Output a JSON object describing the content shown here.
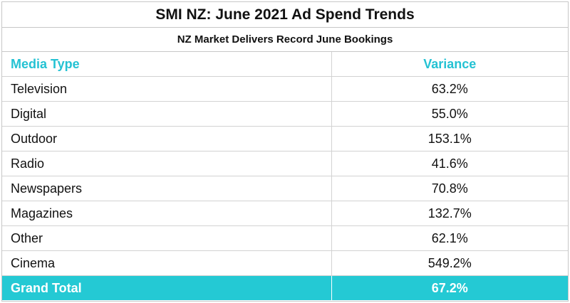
{
  "chart_data": {
    "type": "table",
    "title": "SMI NZ: June 2021 Ad Spend Trends",
    "subtitle": "NZ Market Delivers Record June Bookings",
    "columns": [
      "Media Type",
      "Variance"
    ],
    "rows": [
      {
        "media_type": "Television",
        "variance": "63.2%"
      },
      {
        "media_type": "Digital",
        "variance": "55.0%"
      },
      {
        "media_type": "Outdoor",
        "variance": "153.1%"
      },
      {
        "media_type": "Radio",
        "variance": "41.6%"
      },
      {
        "media_type": "Newspapers",
        "variance": "70.8%"
      },
      {
        "media_type": "Magazines",
        "variance": "132.7%"
      },
      {
        "media_type": "Other",
        "variance": "62.1%"
      },
      {
        "media_type": "Cinema",
        "variance": "549.2%"
      }
    ],
    "total": {
      "label": "Grand Total",
      "variance": "67.2%"
    },
    "colors": {
      "accent": "#24c9d4",
      "header_text": "#24c2d3"
    }
  }
}
